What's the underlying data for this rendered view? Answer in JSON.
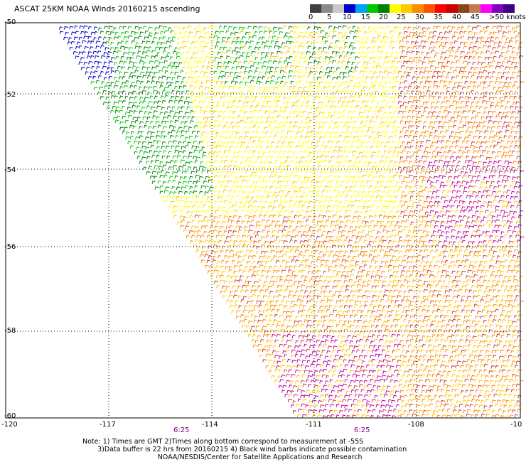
{
  "title": "ASCAT 25KM NOAA Winds 20160215 ascending",
  "legend": {
    "colors": [
      "#404040",
      "#8a8a8a",
      "#c8c8c8",
      "#0000c8",
      "#00a0ff",
      "#00c800",
      "#008000",
      "#ffff00",
      "#ffc800",
      "#ff8c00",
      "#ff5000",
      "#ff0000",
      "#c80000",
      "#8b4513",
      "#c87850",
      "#ff00ff",
      "#8000c0",
      "#400080"
    ],
    "labels": [
      "0",
      "5",
      "10",
      "15",
      "20",
      "25",
      "30",
      "35",
      "40",
      "45",
      ">50 knots"
    ],
    "unit": "knots"
  },
  "axes": {
    "lat_labels": [
      "-50",
      "-52",
      "-54",
      "-56",
      "-58",
      "-60"
    ],
    "lon_labels": [
      "-120",
      "-117",
      "-114",
      "-111",
      "-108",
      "-10"
    ],
    "time_labels": [
      "6:25",
      "6:25"
    ]
  },
  "swath_colors": {
    "very_light": "#0000c8",
    "light": "#00c800",
    "moderate": "#008000",
    "fresh": "#ffff00",
    "strong": "#ffc800",
    "gale": "#ff8c00",
    "storm": "#c83c3c",
    "severe": "#c000a0"
  },
  "notes": [
    "Note: 1) Times are GMT 2)Times along bottom correspond to measurement at -55S",
    "       3)Data buffer is 22 hrs from 20160215 4) Black wind barbs indicate possible contamination",
    "                                   NOAA/NESDIS/Center for Satellite Applications and Research"
  ]
}
